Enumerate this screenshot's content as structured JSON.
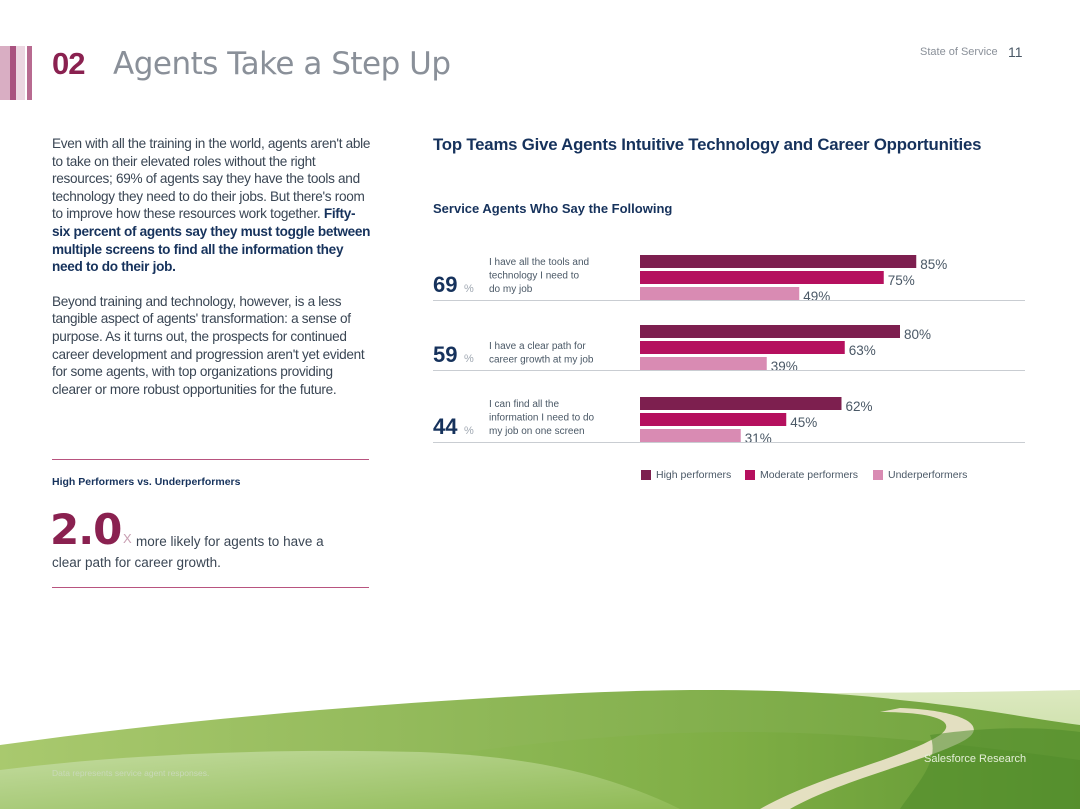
{
  "header": {
    "section_number": "02",
    "section_title": "Agents Take a Step Up",
    "report_name": "State of Service",
    "page_number": "11"
  },
  "intro": {
    "p1_plain": "Even with all the training in the world, agents aren't able to take on their elevated roles without the right resources; 69% of agents say they have the tools and technology they need to do their jobs. But there's room to improve how these resources work together. ",
    "p1_bold": "Fifty-six percent of agents say they must toggle between multiple screens to find all the information they need to do their job.",
    "p2": "Beyond training and technology, however, is a less tangible aspect of agents' transformation: a sense of purpose. As it turns out, the prospects for continued career development and progression aren't yet evident for some agents, with top organizations providing clearer or more robust opportunities for the future."
  },
  "highlight": {
    "title": "High Performers vs. Underperformers",
    "value": "2.0",
    "multiplier": "X",
    "description": "more likely for agents to have a clear path for career growth."
  },
  "chart_data": {
    "type": "bar",
    "orientation": "horizontal",
    "title": "Top Teams Give Agents Intuitive Technology and Career Opportunities",
    "subtitle": "Service Agents Who Say the Following",
    "unit": "%",
    "categories": [
      "I have all the tools and technology I need to do my job",
      "I have a clear path for career growth at my job",
      "I can find all the information I need to do my job on one screen"
    ],
    "category_lines": [
      [
        "I have all the tools and",
        "technology I need to",
        "do my job"
      ],
      [
        "I have a clear path for",
        "career growth at my job"
      ],
      [
        "I can find all the",
        "information I need to do",
        "my job on one screen"
      ]
    ],
    "overall": [
      69,
      59,
      44
    ],
    "series": [
      {
        "name": "High performers",
        "values": [
          85,
          80,
          62
        ],
        "color": "#7d1f4f"
      },
      {
        "name": "Moderate performers",
        "values": [
          75,
          63,
          45
        ],
        "color": "#b5105e"
      },
      {
        "name": "Underperformers",
        "values": [
          49,
          39,
          31
        ],
        "color": "#d98bb3"
      }
    ],
    "xlim": [
      0,
      100
    ],
    "legend_position": "bottom-right"
  },
  "footer": {
    "footnote": "Data represents service agent responses.",
    "brand": "Salesforce Research"
  },
  "colors": {
    "accent": "#8a2150",
    "navy": "#16325c",
    "rule": "#b8547f",
    "stripes": [
      "#d7a7bd",
      "#b86a90",
      "#ead3de",
      "#8a2150"
    ]
  }
}
